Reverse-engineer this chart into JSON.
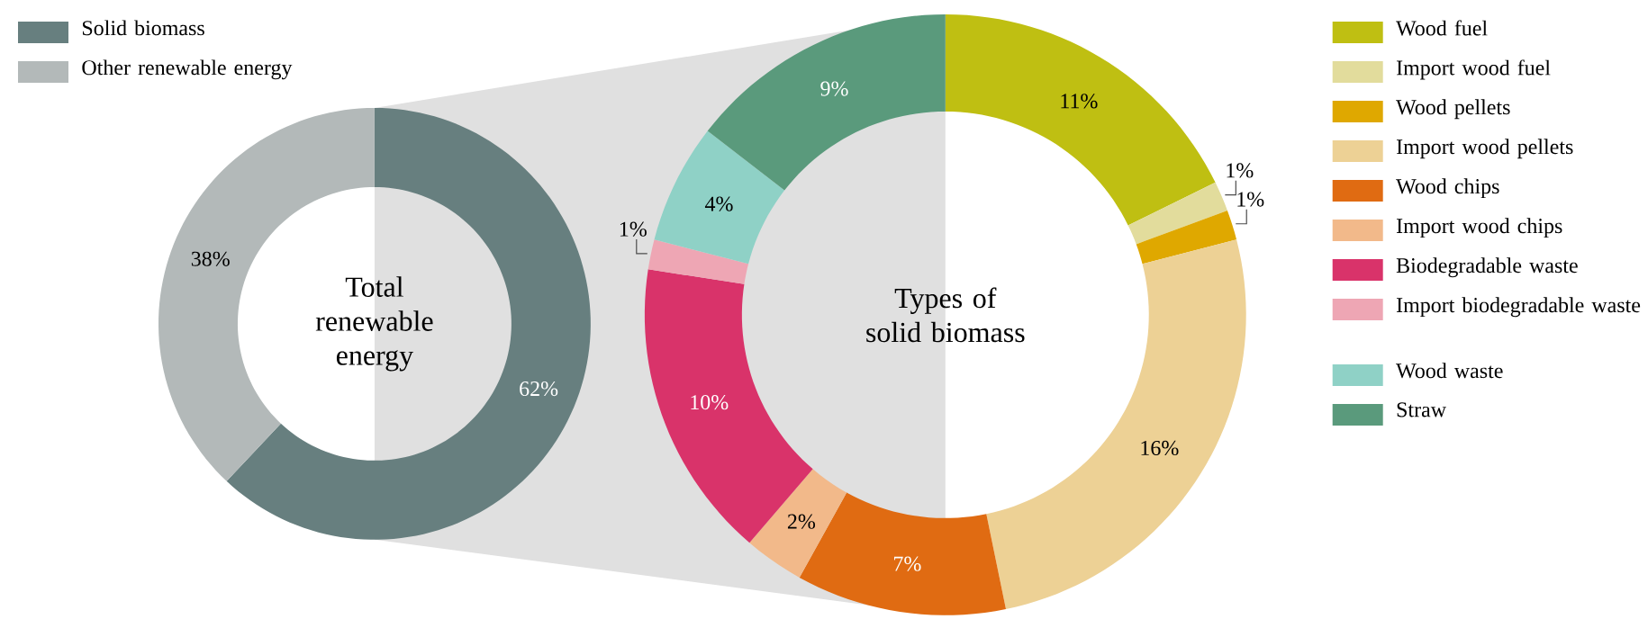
{
  "chart_data": [
    {
      "type": "donut",
      "title": "Total renewable energy",
      "categories": [
        "Solid biomass",
        "Other renewable energy"
      ],
      "values": [
        62,
        38
      ],
      "colors": [
        "#677f7f",
        "#b3b9b9"
      ],
      "value_labels": [
        "62%",
        "38%"
      ],
      "legend": "top left"
    },
    {
      "type": "donut",
      "title": "Types of solid biomass",
      "categories": [
        "Wood fuel",
        "Import wood fuel",
        "Wood pellets",
        "Import wood pellets",
        "Wood chips",
        "Import wood chips",
        "Biodegradable waste",
        "Import biodegradable waste",
        "Wood waste",
        "Straw"
      ],
      "values": [
        11,
        1,
        1,
        16,
        7,
        2,
        10,
        1,
        4,
        9
      ],
      "colors": [
        "#bfbf12",
        "#e2dc9c",
        "#dfa800",
        "#edd195",
        "#e06b12",
        "#f2b98a",
        "#d9336a",
        "#eea6b4",
        "#8fd1c6",
        "#5a9a7c"
      ],
      "value_labels": [
        "11%",
        "1%",
        "1%",
        "16%",
        "7%",
        "2%",
        "10%",
        "1%",
        "4%",
        "9%"
      ],
      "legend": "right"
    }
  ]
}
